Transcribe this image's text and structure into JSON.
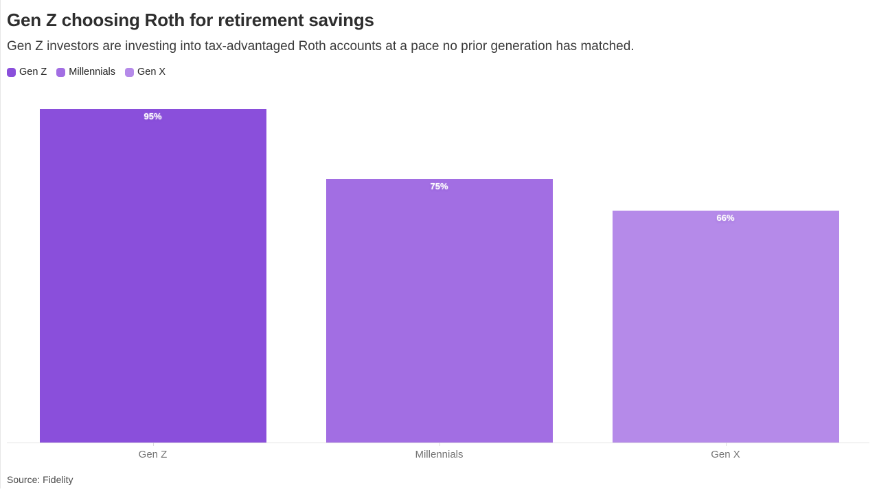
{
  "page": {
    "title": "Gen Z choosing Roth for retirement savings",
    "subtitle": "Gen Z investors are investing into tax-advantaged Roth accounts at a pace no prior generation has matched.",
    "source_label": "Source: Fidelity"
  },
  "chart_data": {
    "type": "bar",
    "title": "Gen Z choosing Roth for retirement savings",
    "subtitle": "Gen Z investors are investing into tax-advantaged Roth accounts at a pace no prior generation has matched.",
    "source": "Source: Fidelity",
    "categories": [
      "Gen Z",
      "Millennials",
      "Gen X"
    ],
    "values": [
      95,
      75,
      66
    ],
    "value_labels": [
      "95%",
      "75%",
      "66%"
    ],
    "bar_colors": [
      "#8a4fdb",
      "#a26ee3",
      "#b58ae9"
    ],
    "unit": "%",
    "ylim": [
      0,
      100
    ],
    "grid": false,
    "y_axis_visible": false,
    "value_label_position": "inside-top",
    "legend": {
      "position": "top",
      "entries": [
        "Gen Z",
        "Millennials",
        "Gen X"
      ]
    }
  }
}
